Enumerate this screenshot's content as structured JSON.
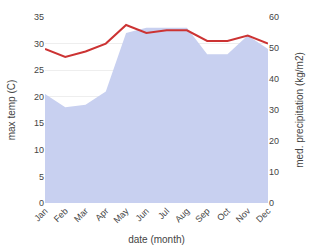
{
  "chart_data": {
    "type": "line",
    "categories": [
      "Jan",
      "Feb",
      "Mar",
      "Apr",
      "May",
      "Jun",
      "Jul",
      "Aug",
      "Sep",
      "Oct",
      "Nov",
      "Dec"
    ],
    "series": [
      {
        "type": "area",
        "color": "#c8d0f0",
        "values": [
          20.5,
          18,
          18.5,
          21,
          32,
          33,
          33,
          33,
          28,
          28,
          31.5,
          29
        ]
      },
      {
        "type": "line",
        "color": "#cc3333",
        "values": [
          29,
          27.5,
          28.5,
          30,
          33.5,
          32,
          32.5,
          32.5,
          30.5,
          30.5,
          31.5,
          30
        ]
      }
    ],
    "xlabel": "date (month)",
    "ylabel": "max temp (C)",
    "y2label": "med. precipitation (kg/m2)",
    "ylim": [
      0,
      35
    ],
    "yticks": [
      0,
      5,
      10,
      15,
      20,
      25,
      30,
      35
    ],
    "y2lim": [
      0,
      60
    ],
    "y2ticks": [
      0,
      10,
      20,
      30,
      40,
      50,
      60
    ],
    "grid": true
  }
}
